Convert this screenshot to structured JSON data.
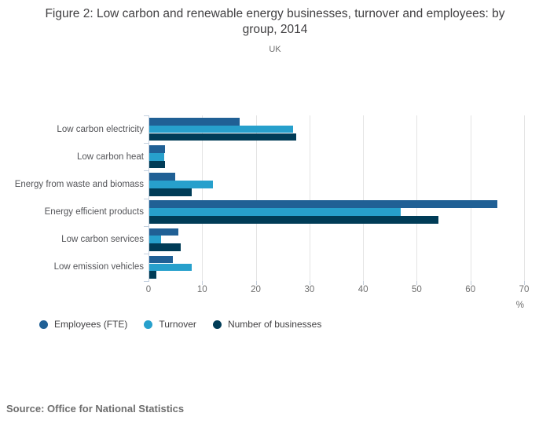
{
  "header": {
    "title": "Figure 2: Low carbon and renewable energy businesses, turnover and employees: by group, 2014",
    "subtitle": "UK"
  },
  "chart_data": {
    "type": "bar",
    "orientation": "horizontal",
    "title": "Figure 2: Low carbon and renewable energy businesses, turnover and employees: by group, 2014",
    "subtitle": "UK",
    "categories": [
      "Low carbon electricity",
      "Low carbon heat",
      "Energy from waste and biomass",
      "Energy efficient products",
      "Low carbon services",
      "Low emission vehicles"
    ],
    "series": [
      {
        "name": "Employees (FTE)",
        "color": "#206095",
        "values": [
          17,
          3,
          5,
          65,
          5.5,
          4.5
        ]
      },
      {
        "name": "Turnover",
        "color": "#27a0cc",
        "values": [
          27,
          2.9,
          12,
          47,
          2.4,
          8
        ]
      },
      {
        "name": "Number of businesses",
        "color": "#003c57",
        "values": [
          27.5,
          3.1,
          8,
          54,
          6,
          1.5
        ]
      }
    ],
    "xlabel": "%",
    "ylabel": "",
    "xlim": [
      0,
      70
    ],
    "xticks": [
      0,
      10,
      20,
      30,
      40,
      50,
      60,
      70
    ],
    "grid": true,
    "legend_position": "bottom"
  },
  "source": "Source: Office for National Statistics"
}
